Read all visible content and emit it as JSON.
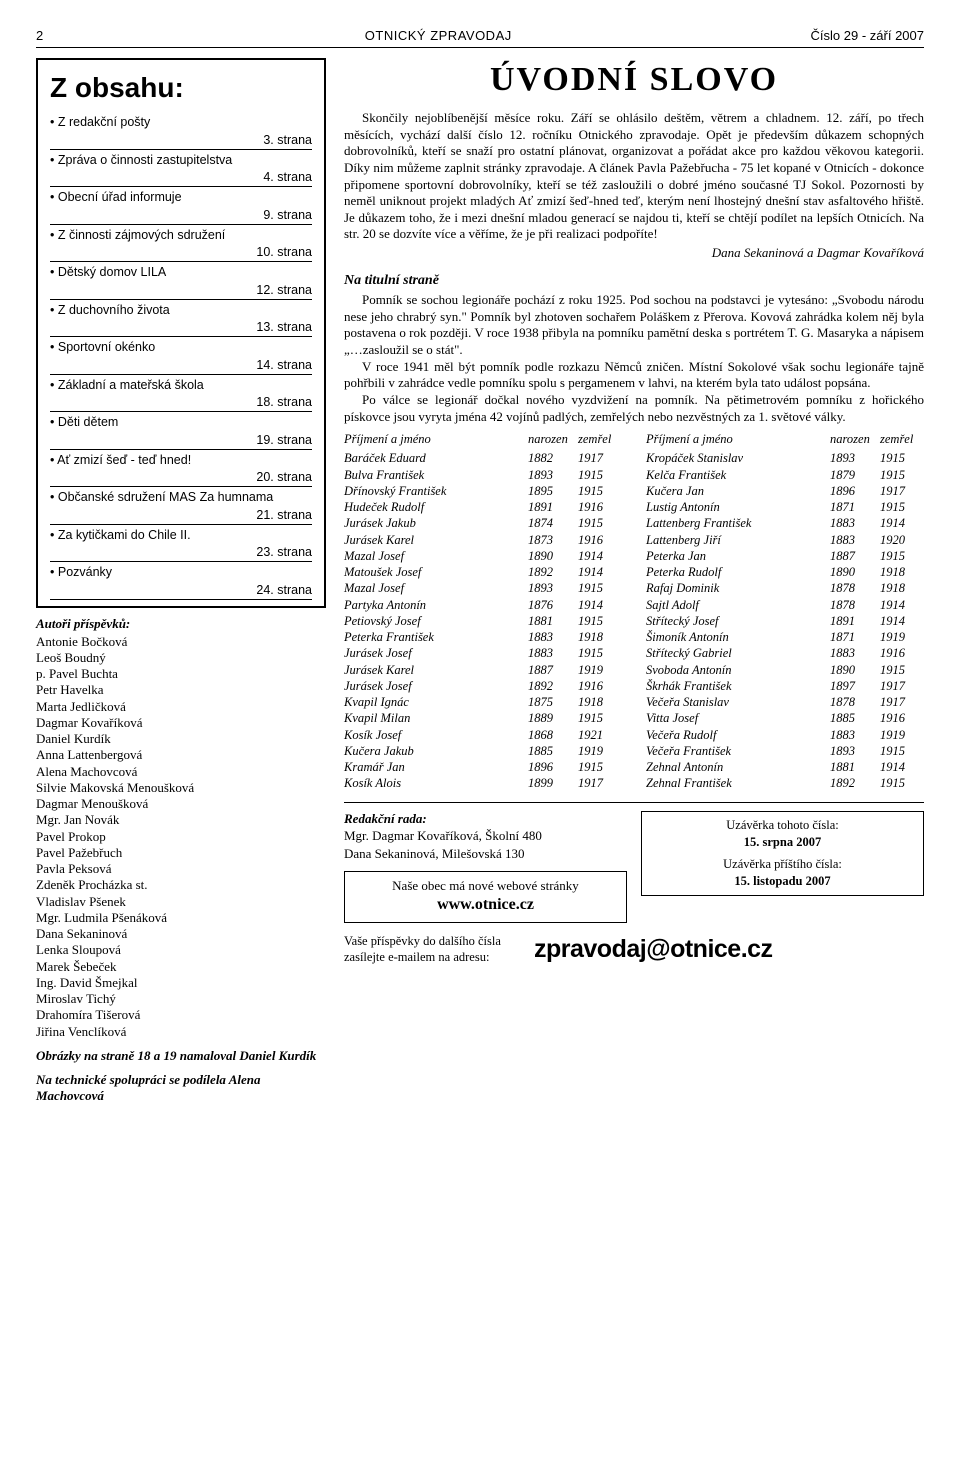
{
  "header": {
    "pagenum": "2",
    "title": "OTNICKÝ ZPRAVODAJ",
    "issue": "Číslo 29 - září 2007"
  },
  "obsah": {
    "heading": "Z obsahu:",
    "items": [
      {
        "label": "Z redakční pošty",
        "page": "3. strana"
      },
      {
        "label": "Zpráva o činnosti zastupitelstva",
        "page": "4. strana"
      },
      {
        "label": "Obecní úřad informuje",
        "page": "9. strana"
      },
      {
        "label": "Z činnosti zájmových sdružení",
        "page": "10. strana"
      },
      {
        "label": "Dětský domov LILA",
        "page": "12. strana"
      },
      {
        "label": "Z duchovního života",
        "page": "13. strana"
      },
      {
        "label": "Sportovní okénko",
        "page": "14. strana"
      },
      {
        "label": "Základní a mateřská škola",
        "page": "18. strana"
      },
      {
        "label": "Děti dětem",
        "page": "19. strana"
      },
      {
        "label": "Ať zmizí šeď - teď hned!",
        "page": "20. strana"
      },
      {
        "label": "Občanské sdružení MAS Za humnama",
        "page": "21. strana"
      },
      {
        "label": "Za kytičkami do Chile II.",
        "page": "23. strana"
      },
      {
        "label": "Pozvánky",
        "page": "24. strana"
      }
    ]
  },
  "authors": {
    "heading": "Autoři příspěvků:",
    "list": [
      "Antonie Bočková",
      "Leoš Boudný",
      "p. Pavel Buchta",
      "Petr Havelka",
      "Marta Jedličková",
      "Dagmar Kovaříková",
      "Daniel Kurdík",
      "Anna Lattenbergová",
      "Alena Machovcová",
      "Silvie Makovská Menoušková",
      "Dagmar Menoušková",
      "Mgr. Jan Novák",
      "Pavel Prokop",
      "Pavel Pažebřuch",
      "Pavla Peksová",
      "Zdeněk Procházka st.",
      "Vladislav Pšenek",
      "Mgr. Ludmila Pšenáková",
      "Dana Sekaninová",
      "Lenka Sloupová",
      "Marek Šebeček",
      "Ing. David Šmejkal",
      "Miroslav Tichý",
      "Drahomíra Tišerová",
      "Jiřina Venclíková"
    ]
  },
  "credits": {
    "line1": "Obrázky na straně 18 a 19 namaloval Daniel Kurdík",
    "line2": "Na technické spolupráci se podílela Alena Machovcová"
  },
  "main": {
    "title": "ÚVODNÍ SLOVO",
    "para1": "Skončily nejoblíbenější měsíce roku. Září se ohlásilo deštěm, větrem a chladnem. 12. září, po třech měsících, vychází další číslo 12. ročníku Otnického zpravodaje. Opět je především důkazem schopných dobrovolníků, kteří se snaží pro ostatní plánovat, organizovat a pořádat akce pro každou věkovou kategorii. Díky nim můžeme zaplnit stránky zpravodaje. A článek Pavla Pažebřucha - 75 let kopané v Otnicích - dokonce připomene sportovní dobrovolníky, kteří se též zasloužili o dobré jméno současné TJ Sokol. Pozornosti by neměl uniknout projekt mladých Ať zmizí šeď-hned teď, kterým není lhostejný dnešní stav asfaltového hřiště. Je důkazem toho, že i mezi dnešní mladou generací se najdou ti, kteří se chtějí podílet na lepších Otnicích. Na str. 20 se dozvíte více a věříme, že je při realizaci podpoříte!",
    "signature": "Dana Sekaninová a Dagmar Kovaříková",
    "subhead": "Na titulní straně",
    "para2a": "Pomník se sochou legionáře pochází z roku 1925. Pod sochou na podstavci je vytesáno: „Svobodu národu nese jeho chrabrý syn.\" Pomník byl zhotoven sochařem Poláškem z Přerova. Kovová zahrádka kolem něj byla postavena o rok později. V roce 1938 přibyla na pomníku pamětní deska s portrétem T. G. Masaryka a nápisem „…zasloužil se o stát\".",
    "para2b": "V roce 1941 měl být pomník podle rozkazu Němců zničen. Místní Sokolové však sochu legionáře tajně pohřbili v zahrádce vedle pomníku spolu s pergamenem v lahvi, na kterém byla tato událost popsána.",
    "para2c": "Po válce se legionář dočkal nového vyzdvižení na pomník. Na pětimetrovém pomníku z hořického pískovce jsou vyryta jména 42 vojínů padlých, zemřelých nebo nezvěstných za 1. světové války."
  },
  "table": {
    "head": {
      "c1": "Příjmení a jméno",
      "c2": "narozen",
      "c3": "zemřel"
    },
    "left": [
      [
        "Baráček Eduard",
        "1882",
        "1917"
      ],
      [
        "Bulva František",
        "1893",
        "1915"
      ],
      [
        "Dřínovský František",
        "1895",
        "1915"
      ],
      [
        "Hudeček Rudolf",
        "1891",
        "1916"
      ],
      [
        "Jurásek Jakub",
        "1874",
        "1915"
      ],
      [
        "Jurásek Karel",
        "1873",
        "1916"
      ],
      [
        "Mazal Josef",
        "1890",
        "1914"
      ],
      [
        "Matoušek Josef",
        "1892",
        "1914"
      ],
      [
        "Mazal Josef",
        "1893",
        "1915"
      ],
      [
        "Partyka Antonín",
        "1876",
        "1914"
      ],
      [
        "Petiovský Josef",
        "1881",
        "1915"
      ],
      [
        "Peterka František",
        "1883",
        "1918"
      ],
      [
        "Jurásek Josef",
        "1883",
        "1915"
      ],
      [
        "Jurásek Karel",
        "1887",
        "1919"
      ],
      [
        "Jurásek Josef",
        "1892",
        "1916"
      ],
      [
        "Kvapil Ignác",
        "1875",
        "1918"
      ],
      [
        "Kvapil Milan",
        "1889",
        "1915"
      ],
      [
        "Kosík Josef",
        "1868",
        "1921"
      ],
      [
        "Kučera Jakub",
        "1885",
        "1919"
      ],
      [
        "Kramář Jan",
        "1896",
        "1915"
      ],
      [
        "Kosík Alois",
        "1899",
        "1917"
      ]
    ],
    "right": [
      [
        "Kropáček Stanislav",
        "1893",
        "1915"
      ],
      [
        "Kelča František",
        "1879",
        "1915"
      ],
      [
        "Kučera Jan",
        "1896",
        "1917"
      ],
      [
        "Lustig Antonín",
        "1871",
        "1915"
      ],
      [
        "Lattenberg František",
        "1883",
        "1914"
      ],
      [
        "Lattenberg Jiří",
        "1883",
        "1920"
      ],
      [
        "Peterka Jan",
        "1887",
        "1915"
      ],
      [
        "Peterka Rudolf",
        "1890",
        "1918"
      ],
      [
        "Rafaj Dominik",
        "1878",
        "1918"
      ],
      [
        "Sajtl Adolf",
        "1878",
        "1914"
      ],
      [
        "Střítecký Josef",
        "1891",
        "1914"
      ],
      [
        "Šimoník Antonín",
        "1871",
        "1919"
      ],
      [
        "Střítecký Gabriel",
        "1883",
        "1916"
      ],
      [
        "Svoboda Antonín",
        "1890",
        "1915"
      ],
      [
        "Škrhák František",
        "1897",
        "1917"
      ],
      [
        "Večeřa Stanislav",
        "1878",
        "1917"
      ],
      [
        "Vitta Josef",
        "1885",
        "1916"
      ],
      [
        "Večeřa Rudolf",
        "1883",
        "1919"
      ],
      [
        "Večeřa František",
        "1893",
        "1915"
      ],
      [
        "Zehnal Antonín",
        "1881",
        "1914"
      ],
      [
        "Zehnal František",
        "1892",
        "1915"
      ]
    ]
  },
  "rada": {
    "heading": "Redakční rada:",
    "line1": "Mgr. Dagmar Kovaříková, Školní 480",
    "line2": "Dana Sekaninová, Milešovská 130"
  },
  "webbox": {
    "line1": "Naše obec má nové webové stránky",
    "line2": "www.otnice.cz"
  },
  "uzav": {
    "l1": "Uzávěrka tohoto čísla:",
    "d1": "15. srpna 2007",
    "l2": "Uzávěrka příštího čísla:",
    "d2": "15. listopadu 2007"
  },
  "email": {
    "lead": "Vaše příspěvky do dalšího čísla zasílejte e-mailem na adresu:",
    "addr": "zpravodaj@otnice.cz"
  }
}
